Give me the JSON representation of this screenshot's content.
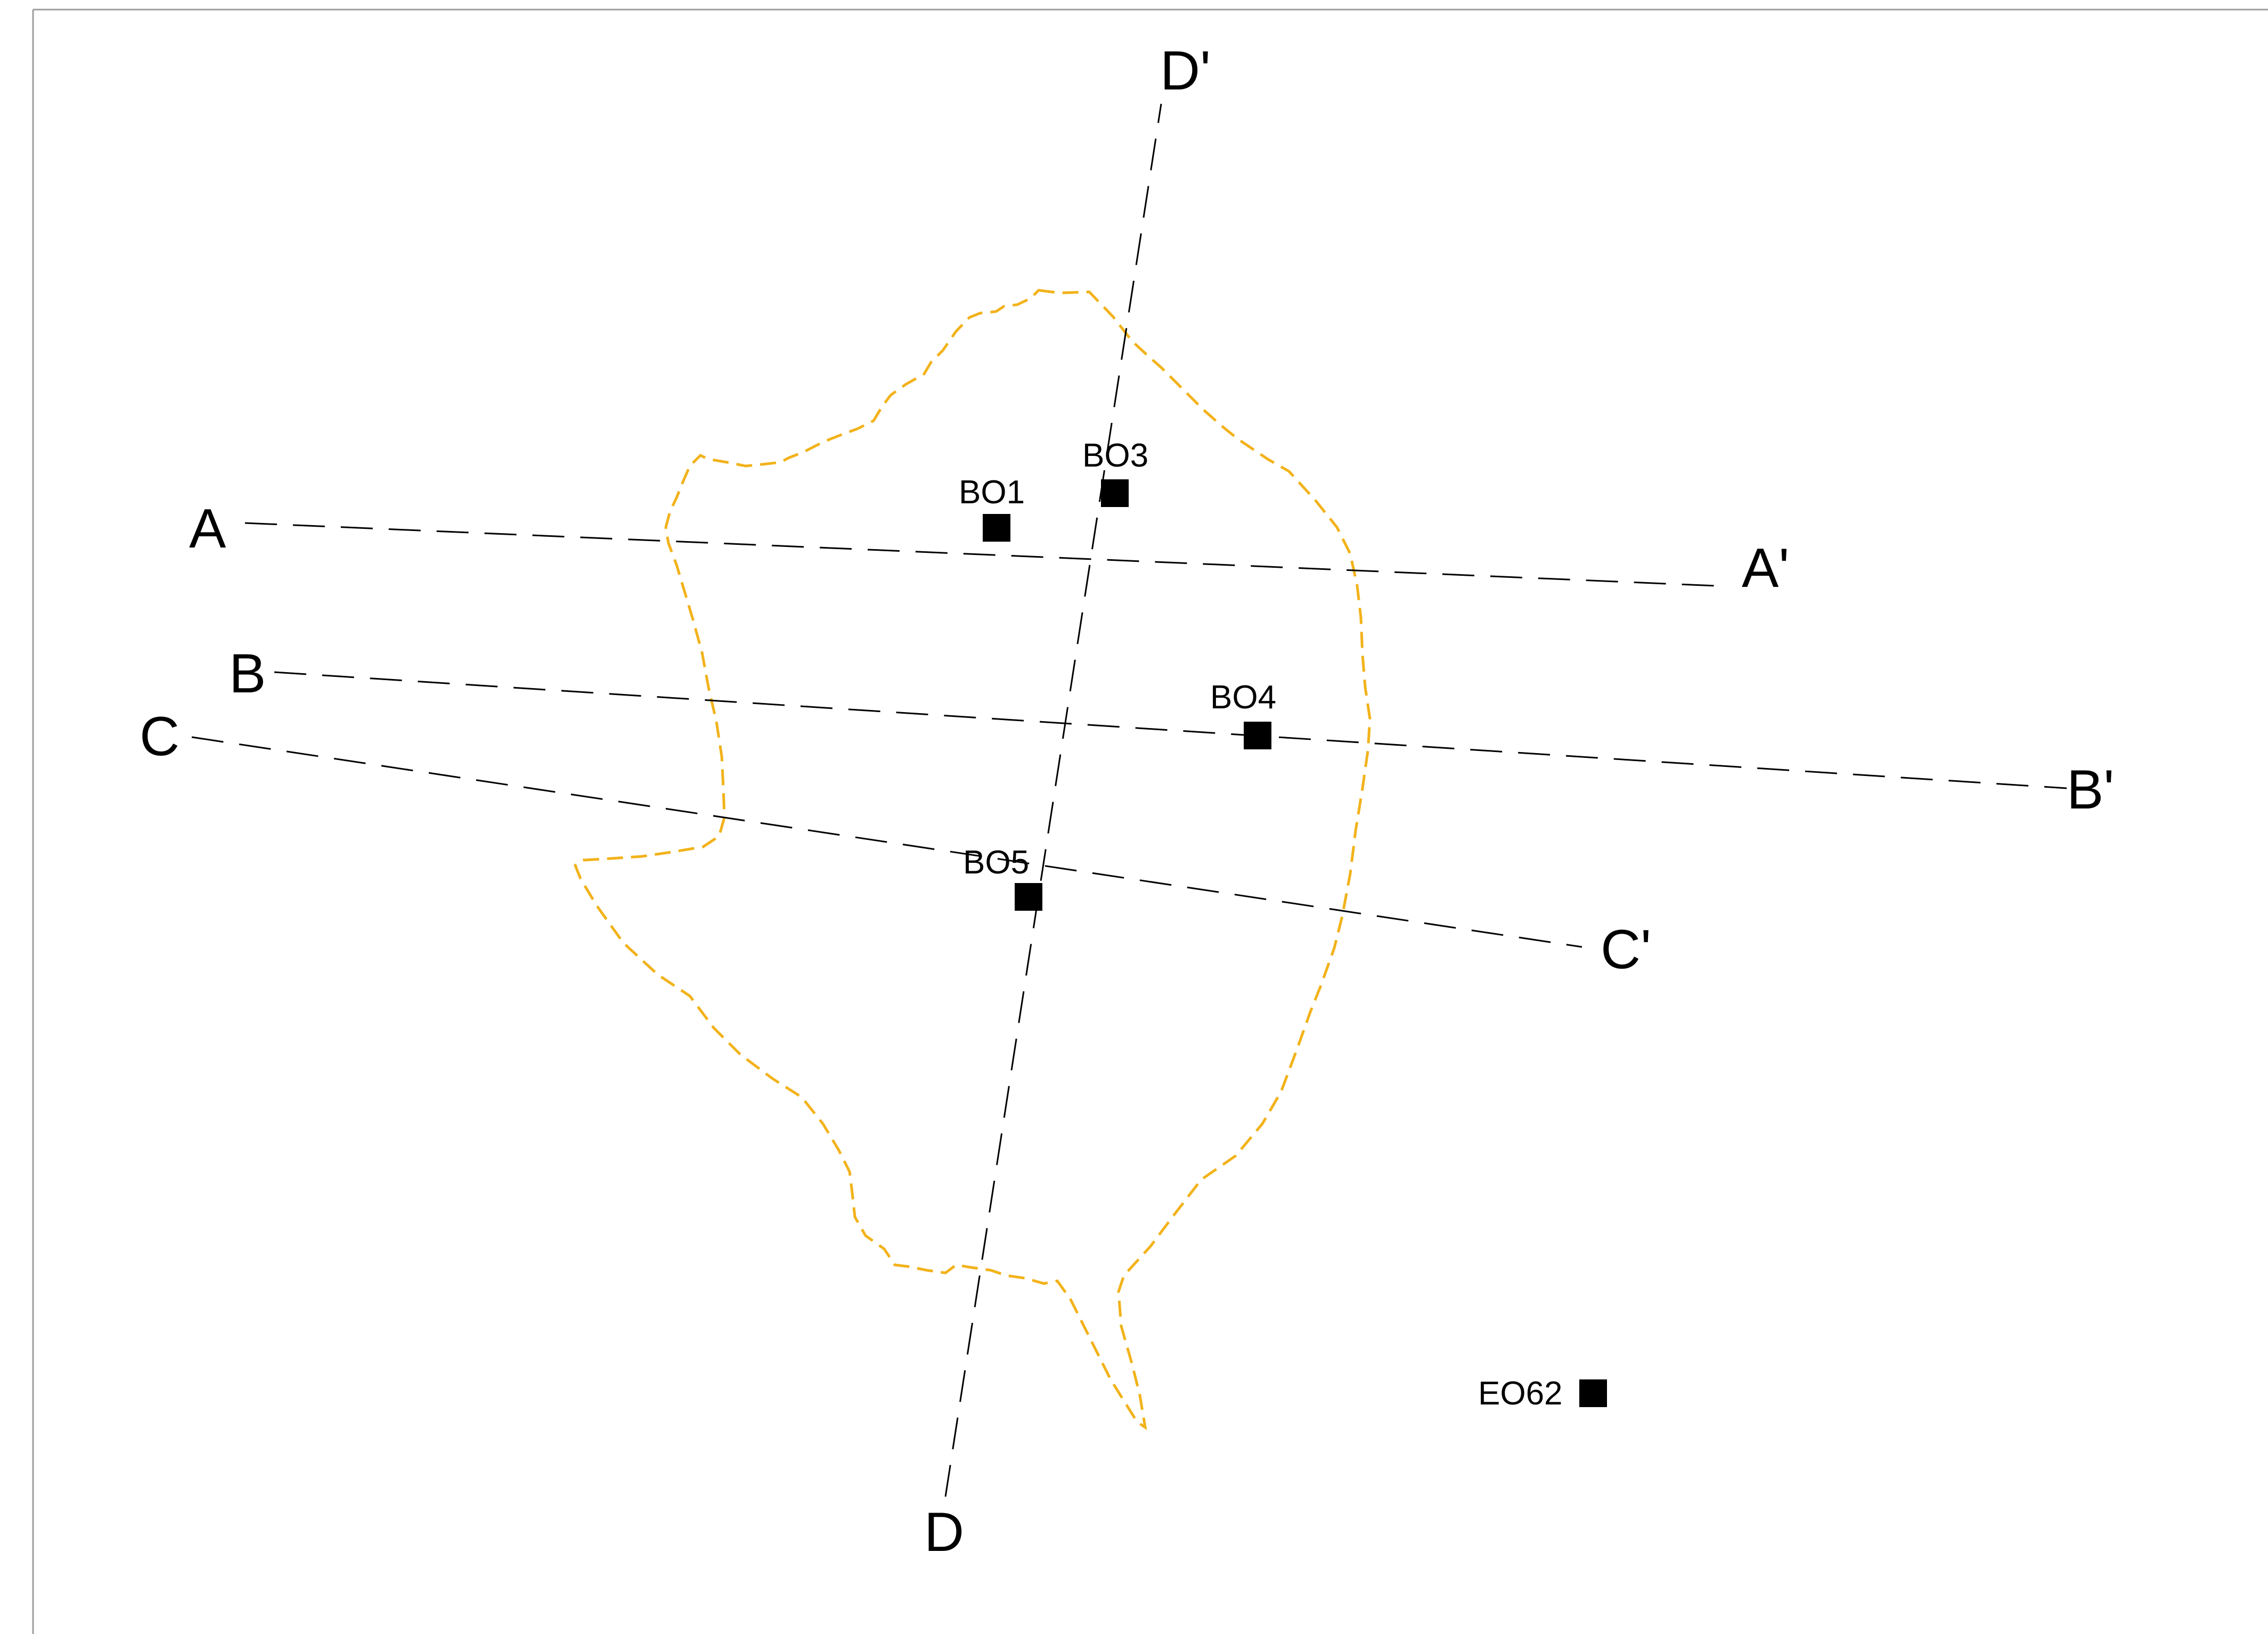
{
  "map": {
    "frame_color": "#9e9e9e",
    "section_line_color": "#000000",
    "boundary_color": "#f2b21a",
    "marker_color": "#000000"
  },
  "sections": [
    {
      "start": "A",
      "end": "A'"
    },
    {
      "start": "B",
      "end": "B'"
    },
    {
      "start": "C",
      "end": "C'"
    },
    {
      "start": "D",
      "end": "D'"
    }
  ],
  "boreholes": [
    {
      "id": "BO1"
    },
    {
      "id": "BO3"
    },
    {
      "id": "BO4"
    },
    {
      "id": "BO5"
    },
    {
      "id": "EO62"
    }
  ]
}
